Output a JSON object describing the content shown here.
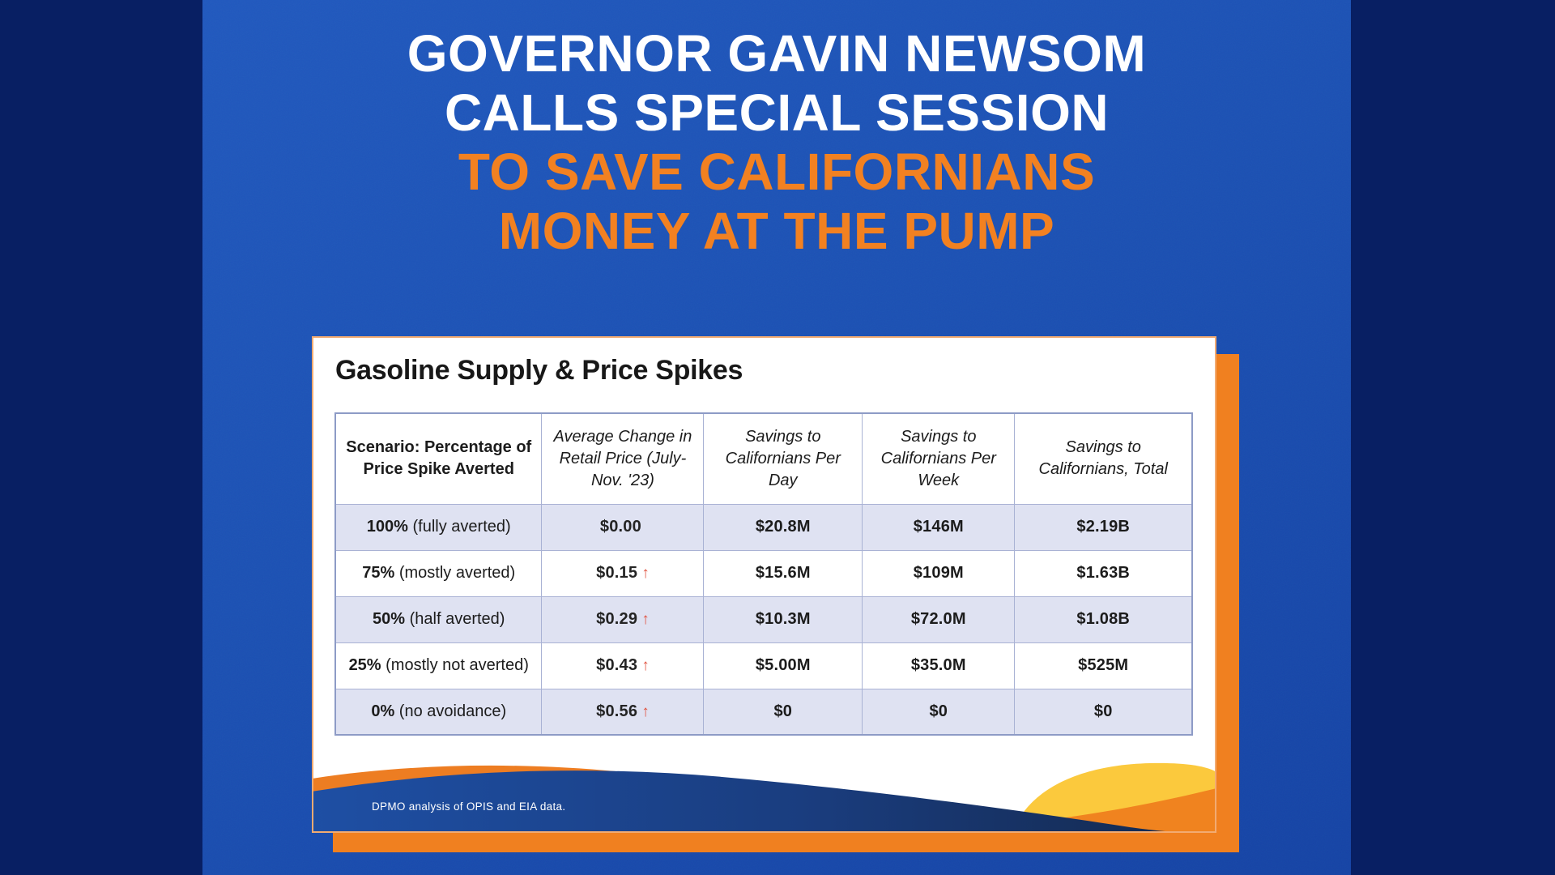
{
  "headline": {
    "line1": "GOVERNOR GAVIN NEWSOM",
    "line2": "CALLS SPECIAL SESSION",
    "line3": "TO SAVE CALIFORNIANS",
    "line4": "MONEY AT THE PUMP"
  },
  "card": {
    "title": "Gasoline Supply & Price Spikes",
    "footnote": "DPMO analysis of OPIS and EIA data."
  },
  "table": {
    "columns": [
      "Scenario: Percentage of Price Spike Averted",
      "Average Change in Retail Price (July-Nov. '23)",
      "Savings to Californians Per Day",
      "Savings to Californians Per Week",
      "Savings to Californians, Total"
    ],
    "rows": [
      {
        "pct": "100%",
        "label": "(fully averted)",
        "change": "$0.00",
        "arrow": false,
        "day": "$20.8M",
        "week": "$146M",
        "total": "$2.19B"
      },
      {
        "pct": "75%",
        "label": "(mostly averted)",
        "change": "$0.15",
        "arrow": true,
        "day": "$15.6M",
        "week": "$109M",
        "total": "$1.63B"
      },
      {
        "pct": "50%",
        "label": "(half averted)",
        "change": "$0.29",
        "arrow": true,
        "day": "$10.3M",
        "week": "$72.0M",
        "total": "$1.08B"
      },
      {
        "pct": "25%",
        "label": "(mostly not averted)",
        "change": "$0.43",
        "arrow": true,
        "day": "$5.00M",
        "week": "$35.0M",
        "total": "$525M"
      },
      {
        "pct": "0%",
        "label": "(no avoidance)",
        "change": "$0.56",
        "arrow": true,
        "day": "$0",
        "week": "$0",
        "total": "$0"
      }
    ]
  },
  "chart_data": {
    "type": "table",
    "title": "Gasoline Supply & Price Spikes",
    "columns": [
      "Scenario: Percentage of Price Spike Averted",
      "Average Change in Retail Price (July-Nov. '23)",
      "Savings to Californians Per Day",
      "Savings to Californians Per Week",
      "Savings to Californians, Total"
    ],
    "rows": [
      [
        "100% (fully averted)",
        "$0.00",
        "$20.8M",
        "$146M",
        "$2.19B"
      ],
      [
        "75% (mostly averted)",
        "$0.15 ↑",
        "$15.6M",
        "$109M",
        "$1.63B"
      ],
      [
        "50% (half averted)",
        "$0.29 ↑",
        "$10.3M",
        "$72.0M",
        "$1.08B"
      ],
      [
        "25% (mostly not averted)",
        "$0.43 ↑",
        "$5.00M",
        "$35.0M",
        "$525M"
      ],
      [
        "0% (no avoidance)",
        "$0.56 ↑",
        "$0",
        "$0",
        "$0"
      ]
    ],
    "notes": "Red up-arrow marks rows where retail price rises; alternating rows shaded lavender."
  },
  "icons": {
    "up_arrow": "↑"
  },
  "colors": {
    "background_navy": "#081f63",
    "panel_blue": "#1c50b2",
    "headline_white": "#ffffff",
    "headline_orange": "#f28121",
    "card_shadow_orange": "#f08020",
    "row_alt_lavender": "#dfe2f2",
    "grid_line": "#a9b2d4",
    "arrow_red": "#e0523f",
    "wave_navy_left": "#1e4fa4",
    "wave_navy_right": "#14294e",
    "wave_orange": "#ed7d22",
    "hill_yellow": "#fbc93d"
  }
}
